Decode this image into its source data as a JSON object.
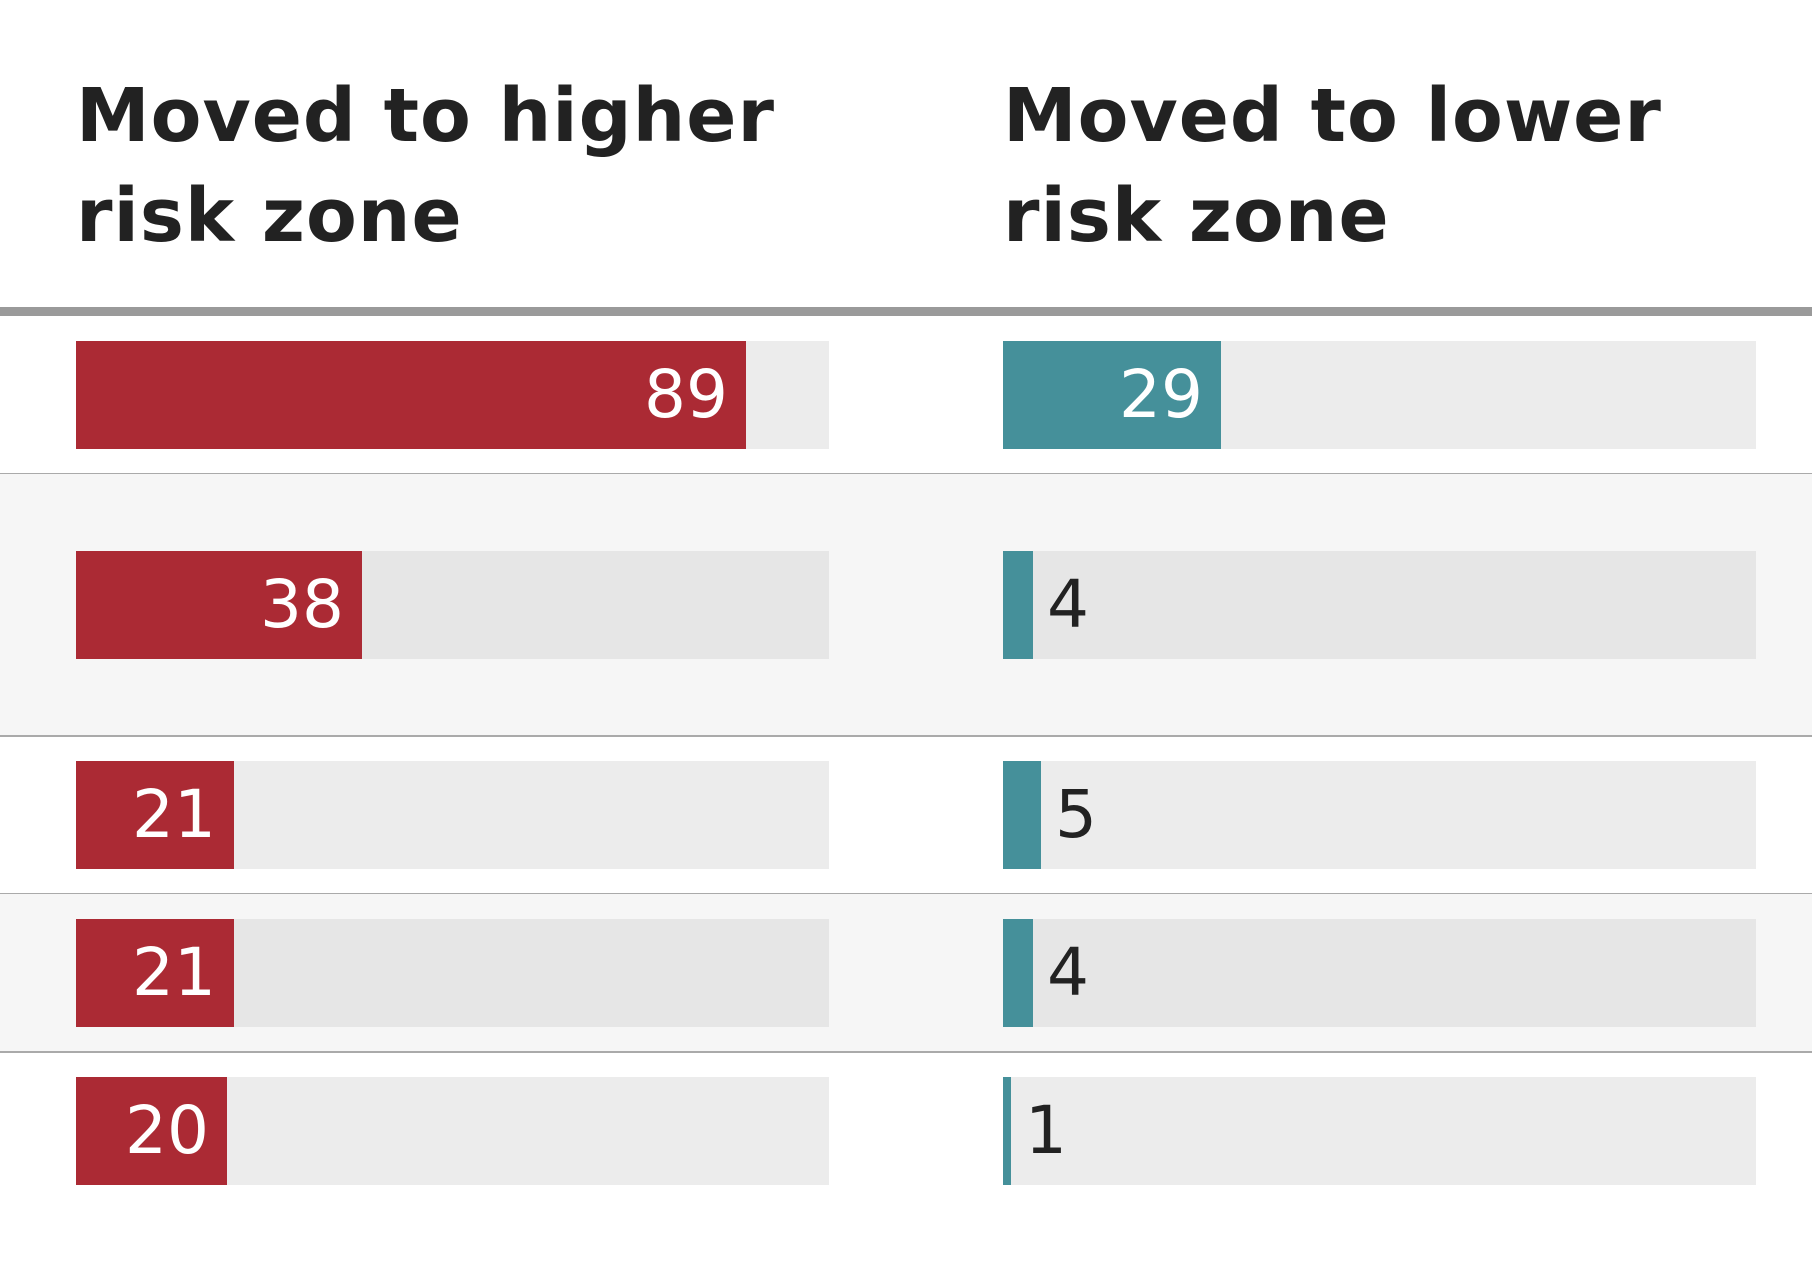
{
  "colors": {
    "higher": "#ab2a34",
    "lower": "#45909a"
  },
  "chart_data": {
    "type": "bar",
    "orientation": "horizontal",
    "xlim": [
      0,
      100
    ],
    "grid": false,
    "series": [
      {
        "name": "Moved to higher risk zone",
        "values": [
          89,
          38,
          21,
          21,
          20
        ]
      },
      {
        "name": "Moved to lower risk zone",
        "values": [
          29,
          4,
          5,
          4,
          1
        ]
      }
    ]
  }
}
